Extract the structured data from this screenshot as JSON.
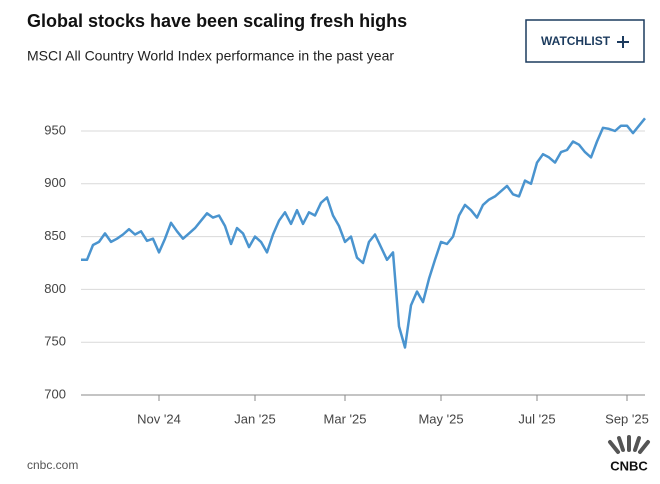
{
  "chart_data": {
    "type": "line",
    "title": "Global stocks have been scaling fresh highs",
    "subtitle": "MSCI All Country World Index performance in the past year",
    "button": "WATCHLIST",
    "source": "cnbc.com",
    "logo": "CNBC",
    "color": "#4a94cf",
    "grid": true,
    "ylim": [
      700,
      985
    ],
    "yticks": [
      700,
      750,
      800,
      850,
      900,
      950
    ],
    "categories": [
      null,
      null,
      null,
      null,
      null,
      null,
      null,
      null,
      null,
      null,
      null,
      null,
      null,
      "Nov '24",
      null,
      null,
      null,
      null,
      null,
      null,
      null,
      null,
      null,
      null,
      null,
      null,
      null,
      null,
      null,
      "Jan '25",
      null,
      null,
      null,
      null,
      null,
      null,
      null,
      null,
      null,
      null,
      null,
      null,
      null,
      null,
      "Mar '25",
      null,
      null,
      null,
      null,
      null,
      null,
      null,
      null,
      null,
      null,
      null,
      null,
      null,
      null,
      null,
      "May '25",
      null,
      null,
      null,
      null,
      null,
      null,
      null,
      null,
      null,
      null,
      null,
      null,
      null,
      null,
      null,
      "Jul '25",
      null,
      null,
      null,
      null,
      null,
      null,
      null,
      null,
      null,
      null,
      null,
      null,
      null,
      null,
      "Sep '25",
      null,
      null,
      null
    ],
    "values": [
      828,
      828,
      842,
      845,
      853,
      845,
      848,
      852,
      857,
      852,
      855,
      846,
      848,
      835,
      848,
      863,
      855,
      848,
      853,
      858,
      865,
      872,
      868,
      870,
      860,
      843,
      858,
      853,
      840,
      850,
      845,
      835,
      852,
      865,
      873,
      862,
      875,
      862,
      873,
      870,
      882,
      887,
      870,
      860,
      845,
      850,
      830,
      825,
      845,
      852,
      840,
      828,
      835,
      765,
      745,
      785,
      798,
      788,
      810,
      828,
      845,
      843,
      850,
      870,
      880,
      875,
      868,
      880,
      885,
      888,
      893,
      898,
      890,
      888,
      903,
      900,
      920,
      928,
      925,
      920,
      930,
      932,
      940,
      937,
      930,
      925,
      940,
      953,
      952,
      950,
      955,
      955,
      948,
      955,
      962
    ]
  }
}
